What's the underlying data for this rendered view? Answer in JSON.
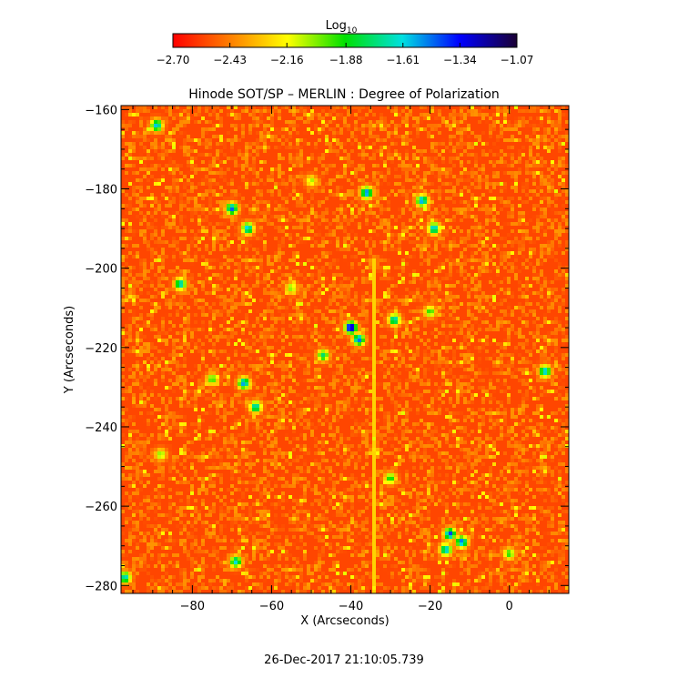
{
  "chart_data": {
    "type": "heatmap",
    "title": "Hinode SOT/SP – MERLIN : Degree of Polarization",
    "xlabel": "X (Arcseconds)",
    "ylabel": "Y (Arcseconds)",
    "xlim": [
      -98,
      15
    ],
    "ylim": [
      -282,
      -159
    ],
    "x_ticks": [
      -80,
      -60,
      -40,
      -20,
      0
    ],
    "x_tick_labels": [
      "−80",
      "−60",
      "−40",
      "−20",
      "0"
    ],
    "y_ticks": [
      -160,
      -180,
      -200,
      -220,
      -240,
      -260,
      -280
    ],
    "y_tick_labels": [
      "−160",
      "−180",
      "−200",
      "−220",
      "−240",
      "−260",
      "−280"
    ],
    "colorbar": {
      "label_base": "Log",
      "label_sub": "10",
      "range": [
        -2.7,
        -1.07
      ],
      "ticks": [
        -2.7,
        -2.43,
        -2.16,
        -1.88,
        -1.61,
        -1.34,
        -1.07
      ],
      "tick_labels": [
        "−2.70",
        "−2.43",
        "−2.16",
        "−1.88",
        "−1.61",
        "−1.34",
        "−1.07"
      ],
      "colors": [
        "#ff0000",
        "#ff7f00",
        "#ffff00",
        "#00e000",
        "#00e0e0",
        "#0000ff",
        "#1a0033"
      ]
    },
    "background_level": -2.55,
    "vertical_artifact_x": -34,
    "features": [
      {
        "x": -40,
        "y": -215,
        "peak": -1.1
      },
      {
        "x": -38,
        "y": -218,
        "peak": -1.45
      },
      {
        "x": -15,
        "y": -267,
        "peak": -1.4
      },
      {
        "x": -12,
        "y": -269,
        "peak": -1.45
      },
      {
        "x": -70,
        "y": -185,
        "peak": -1.45
      },
      {
        "x": -36,
        "y": -181,
        "peak": -1.45
      },
      {
        "x": -22,
        "y": -183,
        "peak": -1.5
      },
      {
        "x": -19,
        "y": -190,
        "peak": -1.55
      },
      {
        "x": -67,
        "y": -229,
        "peak": -1.5
      },
      {
        "x": 9,
        "y": -226,
        "peak": -1.55
      },
      {
        "x": -66,
        "y": -190,
        "peak": -1.55
      },
      {
        "x": -64,
        "y": -235,
        "peak": -1.6
      },
      {
        "x": -69,
        "y": -274,
        "peak": -1.6
      },
      {
        "x": -89,
        "y": -164,
        "peak": -1.55
      },
      {
        "x": -83,
        "y": -204,
        "peak": -1.6
      },
      {
        "x": -29,
        "y": -213,
        "peak": -1.6
      },
      {
        "x": -16,
        "y": -271,
        "peak": -1.55
      },
      {
        "x": -97,
        "y": -278,
        "peak": -1.6
      },
      {
        "x": -47,
        "y": -222,
        "peak": -1.75
      },
      {
        "x": -75,
        "y": -228,
        "peak": -1.9
      },
      {
        "x": -30,
        "y": -253,
        "peak": -1.85
      },
      {
        "x": -20,
        "y": -211,
        "peak": -1.9
      },
      {
        "x": 0,
        "y": -272,
        "peak": -1.9
      },
      {
        "x": -55,
        "y": -205,
        "peak": -2.0
      },
      {
        "x": -88,
        "y": -247,
        "peak": -2.0
      },
      {
        "x": -50,
        "y": -178,
        "peak": -2.05
      }
    ],
    "timestamp": "26-Dec-2017 21:10:05.739"
  }
}
